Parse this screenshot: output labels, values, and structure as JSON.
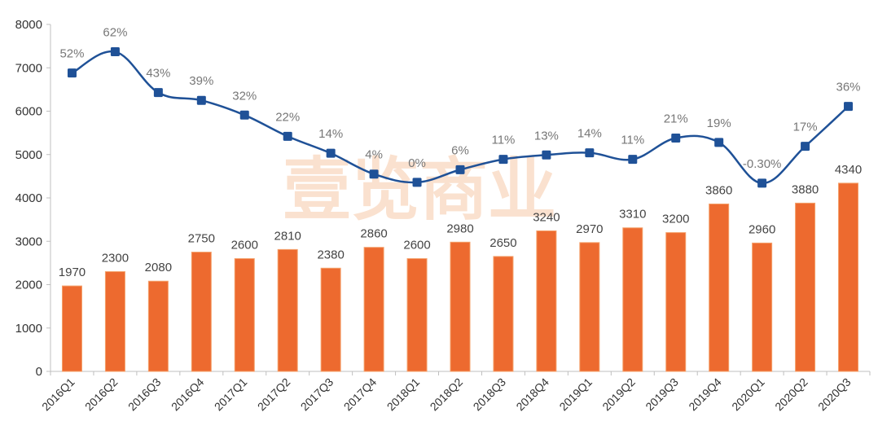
{
  "chart_data": {
    "type": "bar",
    "categories": [
      "2016Q1",
      "2016Q2",
      "2016Q3",
      "2016Q4",
      "2017Q1",
      "2017Q2",
      "2017Q3",
      "2017Q4",
      "2018Q1",
      "2018Q2",
      "2018Q3",
      "2018Q4",
      "2019Q1",
      "2019Q2",
      "2019Q3",
      "2019Q4",
      "2020Q1",
      "2020Q2",
      "2020Q3"
    ],
    "series": [
      {
        "type": "bar",
        "values": [
          1970,
          2300,
          2080,
          2750,
          2600,
          2810,
          2380,
          2860,
          2600,
          2980,
          2650,
          3240,
          2970,
          3310,
          3200,
          3860,
          2960,
          3880,
          4340
        ],
        "color": "#ED6A2F"
      },
      {
        "type": "line",
        "values": [
          6880,
          7370,
          6430,
          6250,
          5910,
          5420,
          5030,
          4550,
          4360,
          4650,
          4890,
          4990,
          5040,
          4890,
          5380,
          5280,
          4340,
          5190,
          6110
        ],
        "labels": [
          "52%",
          "62%",
          "43%",
          "39%",
          "32%",
          "22%",
          "14%",
          "4%",
          "0%",
          "6%",
          "11%",
          "13%",
          "14%",
          "11%",
          "21%",
          "19%",
          "-0.30%",
          "17%",
          "36%"
        ],
        "color": "#1F5197"
      }
    ],
    "ylim": [
      0,
      8000
    ],
    "yticks": [
      0,
      1000,
      2000,
      3000,
      4000,
      5000,
      6000,
      7000,
      8000
    ],
    "grid": false,
    "watermark": "壹览商业"
  }
}
